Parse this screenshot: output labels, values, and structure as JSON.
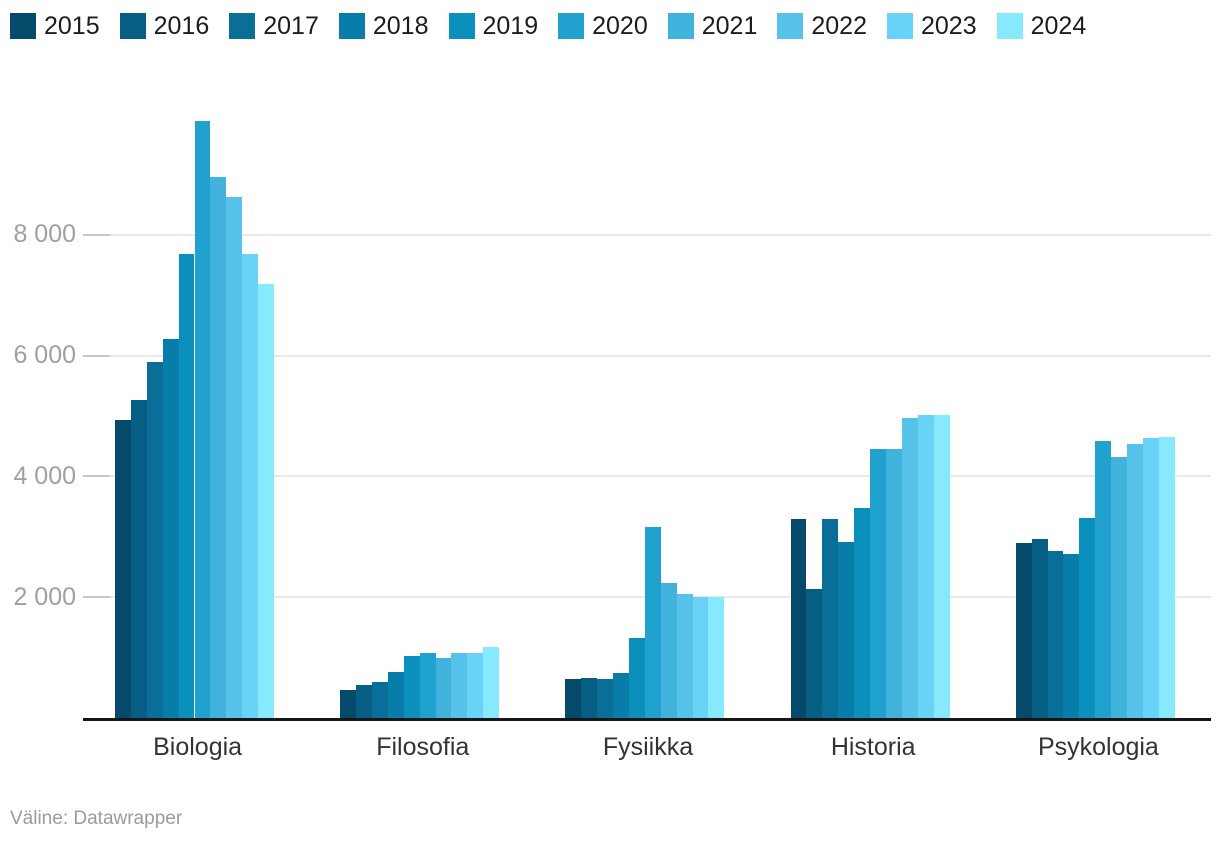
{
  "footer": {
    "byline": "Väline: Datawrapper"
  },
  "chart_data": {
    "type": "bar",
    "title": "",
    "xlabel": "",
    "ylabel": "",
    "grid": "horizontal",
    "legend_position": "top",
    "ylim": [
      0,
      10000
    ],
    "categories": [
      "Biologia",
      "Filosofia",
      "Fysiikka",
      "Historia",
      "Psykologia"
    ],
    "yticks": [
      {
        "value": 2000,
        "label": "2 000"
      },
      {
        "value": 4000,
        "label": "4 000"
      },
      {
        "value": 6000,
        "label": "6 000"
      },
      {
        "value": 8000,
        "label": "8 000"
      }
    ],
    "series": [
      {
        "name": "2015",
        "color": "#05496b",
        "values": [
          4940,
          470,
          640,
          3290,
          2900
        ]
      },
      {
        "name": "2016",
        "color": "#075e85",
        "values": [
          5260,
          540,
          670,
          2130,
          2970
        ]
      },
      {
        "name": "2017",
        "color": "#0a6f98",
        "values": [
          5900,
          600,
          650,
          3290,
          2770
        ]
      },
      {
        "name": "2018",
        "color": "#097daa",
        "values": [
          6270,
          770,
          750,
          2920,
          2710
        ]
      },
      {
        "name": "2019",
        "color": "#0b90bd",
        "values": [
          7690,
          1030,
          1320,
          3470,
          3320
        ]
      },
      {
        "name": "2020",
        "color": "#21a2ce",
        "values": [
          9880,
          1080,
          3170,
          4460,
          4590
        ]
      },
      {
        "name": "2021",
        "color": "#41b2dc",
        "values": [
          8950,
          1000,
          2230,
          4460,
          4330
        ]
      },
      {
        "name": "2022",
        "color": "#57c2ea",
        "values": [
          8630,
          1080,
          2060,
          4960,
          4530
        ]
      },
      {
        "name": "2023",
        "color": "#68d3f7",
        "values": [
          7690,
          1070,
          2000,
          5020,
          4640
        ]
      },
      {
        "name": "2024",
        "color": "#86e9fd",
        "values": [
          7190,
          1170,
          2010,
          5010,
          4650
        ]
      }
    ]
  }
}
